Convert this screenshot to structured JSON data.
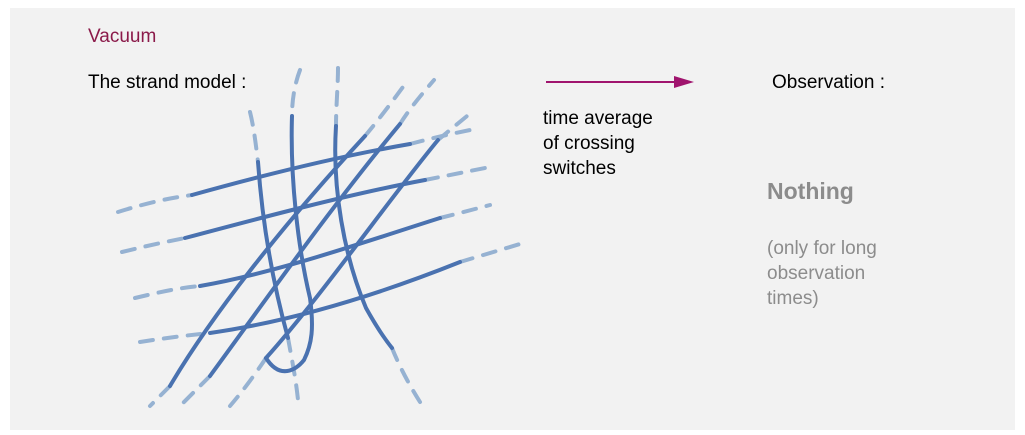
{
  "title": "Vacuum",
  "strand_label": "The strand model :",
  "arrow_caption": "time average\nof crossing\nswitches",
  "observation_label": "Observation :",
  "result": "Nothing",
  "note": "(only for long\nobservation\ntimes)",
  "colors": {
    "background": "#f2f2f2",
    "title": "#8b1a4a",
    "strand_solid": "#4a72b0",
    "strand_dashed": "#96b2d2",
    "arrow": "#a0146e",
    "gray_text": "#8c8c8c"
  },
  "icons": {
    "arrow": "right-arrow-icon"
  }
}
